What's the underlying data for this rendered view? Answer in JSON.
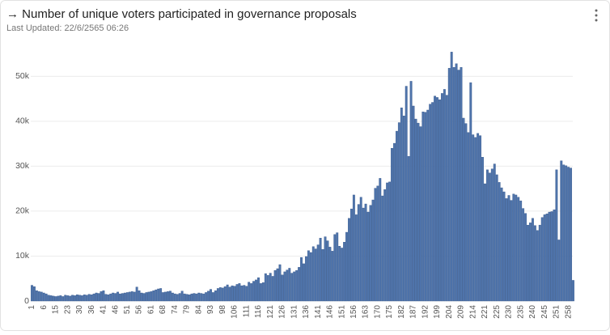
{
  "chart_data": {
    "type": "bar",
    "title": "→ Number of unique voters participated in governance proposals",
    "subtitle": "Last Updated: 22/6/2565 06:26",
    "color": "#4f74ab",
    "grid": true,
    "ylim": [
      0,
      56000
    ],
    "yticks": [
      0,
      {
        "value": 10000,
        "label": "10k"
      },
      {
        "value": 20000,
        "label": "20k"
      },
      {
        "value": 30000,
        "label": "30k"
      },
      {
        "value": 40000,
        "label": "40k"
      },
      {
        "value": 50000,
        "label": "50k"
      }
    ],
    "categories": [
      "1",
      null,
      null,
      null,
      null,
      "6",
      null,
      null,
      null,
      null,
      "15",
      null,
      null,
      null,
      null,
      "23",
      null,
      null,
      null,
      null,
      "30",
      null,
      null,
      null,
      null,
      "36",
      null,
      null,
      null,
      null,
      "41",
      null,
      null,
      null,
      null,
      "46",
      null,
      null,
      null,
      null,
      "51",
      null,
      null,
      null,
      null,
      "56",
      null,
      null,
      null,
      null,
      "61",
      null,
      null,
      null,
      null,
      "68",
      null,
      null,
      null,
      null,
      "74",
      null,
      null,
      null,
      null,
      "79",
      null,
      null,
      null,
      null,
      "84",
      null,
      null,
      null,
      null,
      "93",
      null,
      null,
      null,
      null,
      "98",
      null,
      null,
      null,
      null,
      "106",
      null,
      null,
      null,
      null,
      "111",
      null,
      null,
      null,
      null,
      "116",
      null,
      null,
      null,
      null,
      "121",
      null,
      null,
      null,
      null,
      "126",
      null,
      null,
      null,
      null,
      "131",
      null,
      null,
      null,
      null,
      "136",
      null,
      null,
      null,
      null,
      "141",
      null,
      null,
      null,
      null,
      "146",
      null,
      null,
      null,
      null,
      "151",
      null,
      null,
      null,
      null,
      "156",
      null,
      null,
      null,
      null,
      "163",
      null,
      null,
      null,
      null,
      "170",
      null,
      null,
      null,
      null,
      "175",
      null,
      null,
      null,
      null,
      "182",
      null,
      null,
      null,
      null,
      "187",
      null,
      null,
      null,
      null,
      "192",
      null,
      null,
      null,
      null,
      "199",
      null,
      null,
      null,
      null,
      "204",
      null,
      null,
      null,
      null,
      "209",
      null,
      null,
      null,
      null,
      "214",
      null,
      null,
      null,
      null,
      "221",
      null,
      null,
      null,
      null,
      "225",
      null,
      null,
      null,
      null,
      "230",
      null,
      null,
      null,
      null,
      "235",
      null,
      null,
      null,
      null,
      "240",
      null,
      null,
      null,
      null,
      "245",
      null,
      null,
      null,
      null,
      "251",
      null,
      null,
      null,
      null,
      "258",
      null,
      null
    ],
    "values": [
      3500,
      3200,
      2300,
      2100,
      2000,
      1800,
      1600,
      1300,
      1200,
      1100,
      1000,
      1100,
      1200,
      1000,
      1300,
      1200,
      1100,
      1300,
      1200,
      1400,
      1300,
      1200,
      1400,
      1300,
      1500,
      1400,
      1600,
      1800,
      1700,
      2100,
      2300,
      1500,
      1400,
      1600,
      1800,
      1700,
      2000,
      1600,
      1700,
      1800,
      1900,
      2000,
      2100,
      2000,
      3100,
      2300,
      1800,
      1700,
      1900,
      2000,
      2100,
      2300,
      2500,
      2700,
      2800,
      1900,
      2000,
      2100,
      2200,
      1800,
      1600,
      1500,
      1700,
      2200,
      1600,
      1500,
      1400,
      1600,
      1700,
      1600,
      1800,
      1700,
      1600,
      1900,
      2200,
      2600,
      1900,
      2300,
      2800,
      3000,
      2900,
      3200,
      3600,
      3100,
      3400,
      3300,
      3700,
      3900,
      3400,
      3500,
      3300,
      4200,
      3900,
      4400,
      4700,
      5200,
      3900,
      4100,
      6100,
      5700,
      6200,
      5500,
      6800,
      7200,
      8100,
      5800,
      6500,
      6900,
      7300,
      6200,
      6500,
      6800,
      7500,
      9700,
      8300,
      9900,
      11200,
      10800,
      12100,
      11600,
      12500,
      14000,
      11500,
      14300,
      13400,
      12000,
      11100,
      14800,
      15200,
      12200,
      11800,
      13100,
      15300,
      18400,
      20500,
      23600,
      19200,
      21500,
      23100,
      20700,
      21600,
      19800,
      21300,
      22500,
      25100,
      25600,
      27300,
      23400,
      24800,
      26300,
      26500,
      34000,
      35100,
      37800,
      39700,
      43000,
      41200,
      47800,
      32200,
      48900,
      43400,
      40500,
      39600,
      38800,
      42100,
      42000,
      42500,
      43800,
      44200,
      45600,
      45300,
      44800,
      46200,
      47100,
      45800,
      51800,
      55400,
      52000,
      52800,
      51400,
      52000,
      40700,
      39500,
      37500,
      48600,
      37000,
      36400,
      37300,
      36800,
      32000,
      26100,
      29200,
      28500,
      29400,
      30500,
      28100,
      26400,
      25200,
      24300,
      22800,
      23500,
      22400,
      23800,
      23600,
      23100,
      22300,
      20600,
      19500,
      16900,
      17400,
      18400,
      16800,
      15700,
      16900,
      18600,
      19200,
      19400,
      19800,
      19900,
      20300,
      29200,
      13600,
      31200,
      30300,
      30100,
      29800,
      29600,
      4600
    ]
  }
}
